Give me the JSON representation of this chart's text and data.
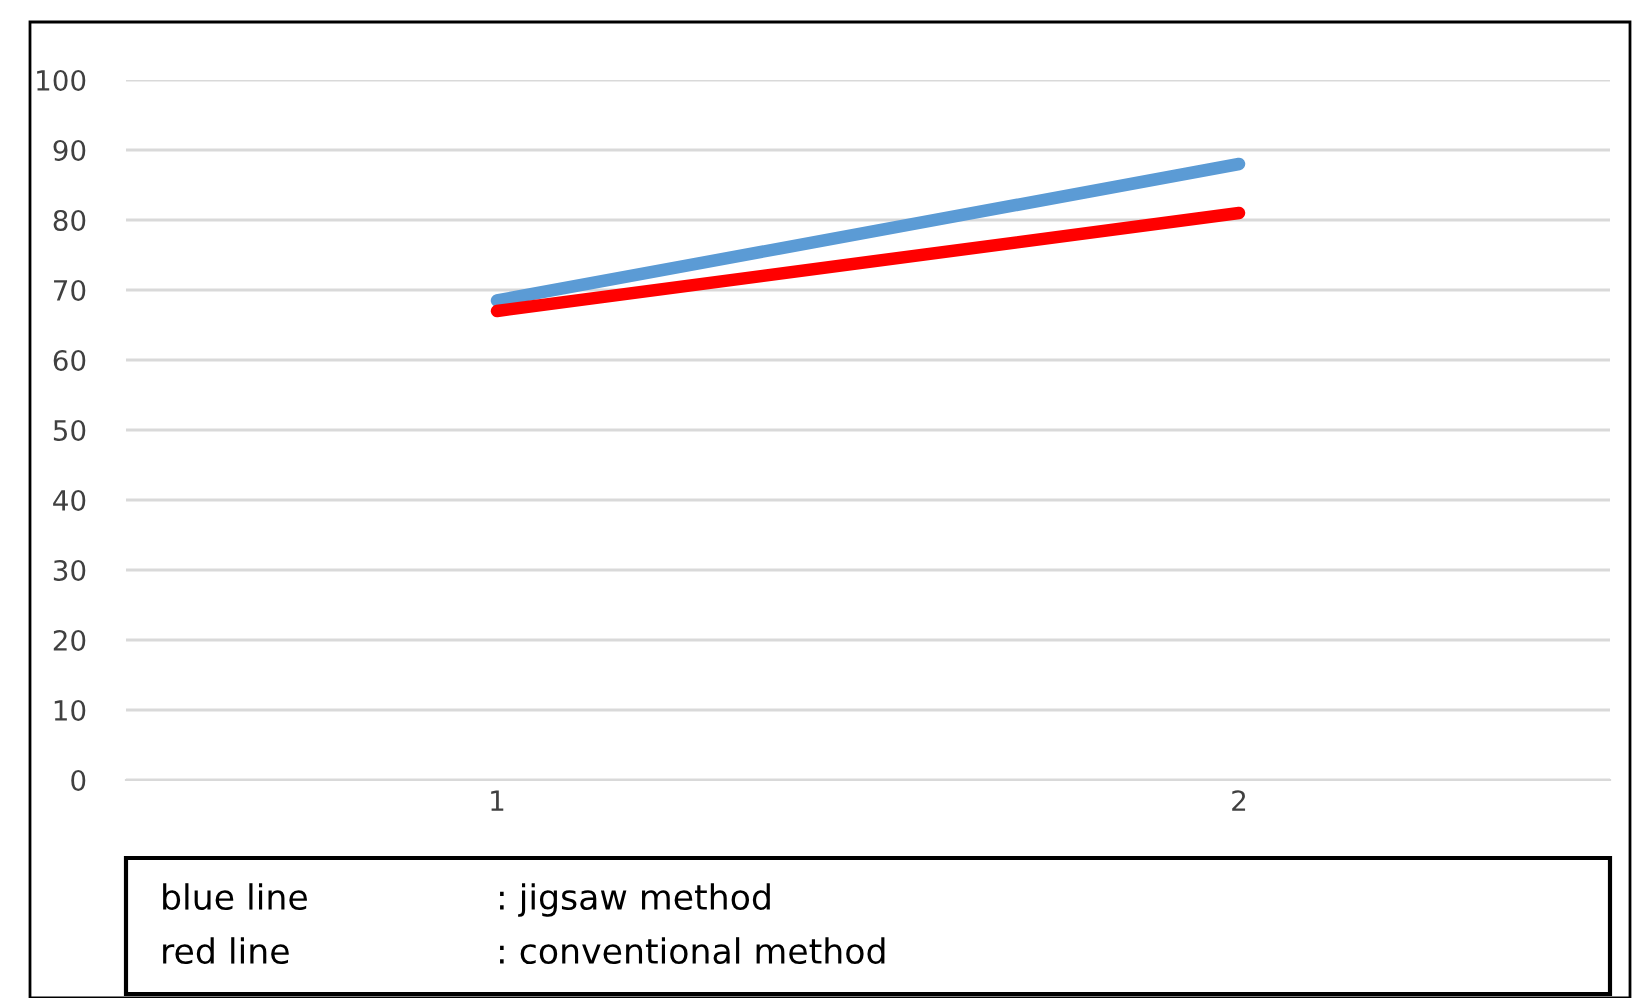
{
  "chart_data": {
    "type": "line",
    "categories": [
      "1",
      "2"
    ],
    "series": [
      {
        "color": "#5b9bd5",
        "values": [
          68.5,
          88
        ]
      },
      {
        "color": "#ff0000",
        "values": [
          67,
          81
        ]
      }
    ],
    "ylim": [
      0,
      100
    ],
    "yticks": [
      0,
      10,
      20,
      30,
      40,
      50,
      60,
      70,
      80,
      90,
      100
    ],
    "grid": "y",
    "legend": false,
    "marker": "none",
    "line_style": "solid",
    "annotations": [
      "blue line",
      ": jigsaw method",
      "red line",
      ": conventional method"
    ]
  }
}
